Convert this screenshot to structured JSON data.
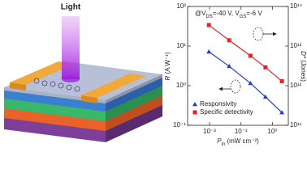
{
  "illustration": {
    "label": "Light"
  },
  "chart_data": {
    "type": "line",
    "annotation": [
      "@V",
      "DS",
      "=-40 V, V",
      "GS",
      "=-6 V"
    ],
    "xlabel": [
      "P",
      "in",
      " (mW cm⁻²)"
    ],
    "ylabel": [
      "R",
      " (A W⁻¹)"
    ],
    "y2label": [
      "D*",
      " (Jones)"
    ],
    "x": [
      0.0095,
      0.042,
      0.2,
      0.6,
      2.0
    ],
    "xscale": "log",
    "yscale": "log",
    "y2scale": "log",
    "xlim": [
      0.002,
      3.2
    ],
    "ylim": [
      0.1,
      100
    ],
    "y2lim": [
      100000000000,
      100000000000000
    ],
    "xticks": [
      {
        "value": 0.01,
        "label": "10⁻²"
      },
      {
        "value": 0.1,
        "label": "10⁻¹"
      },
      {
        "value": 1,
        "label": "10⁰"
      }
    ],
    "yticks": [
      {
        "value": 0.1,
        "label": "10⁻¹"
      },
      {
        "value": 1,
        "label": "10⁰"
      },
      {
        "value": 10,
        "label": "10¹"
      },
      {
        "value": 100,
        "label": "10²"
      }
    ],
    "y2ticks": [
      {
        "value": 100000000000,
        "label": "10¹¹"
      },
      {
        "value": 1000000000000,
        "label": "10¹²"
      },
      {
        "value": 10000000000000,
        "label": "10¹³"
      },
      {
        "value": 100000000000000,
        "label": "10¹⁴"
      }
    ],
    "series": [
      {
        "name": "Responsivity",
        "color": "#1f3fbf",
        "marker": "triangle",
        "values": [
          7.2,
          3.1,
          1.15,
          0.52,
          0.21
        ]
      },
      {
        "name": "Specific detectivity",
        "color": "#e02424",
        "marker": "square",
        "axis": "y2",
        "values": [
          34000000000000,
          14000000000000,
          5700000000000,
          2900000000000,
          1300000000000
        ]
      }
    ],
    "legend": "lower left"
  }
}
